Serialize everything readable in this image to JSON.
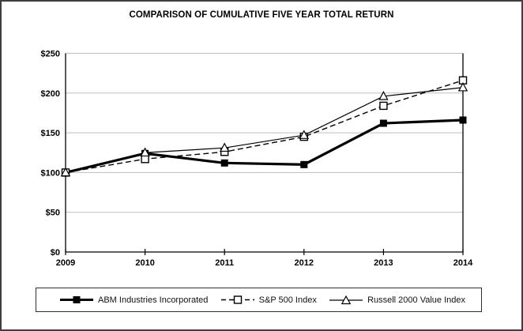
{
  "chart_data": {
    "type": "line",
    "title": "COMPARISON OF CUMULATIVE FIVE YEAR TOTAL RETURN",
    "x": [
      2009,
      2010,
      2011,
      2012,
      2013,
      2014
    ],
    "xtick_labels": [
      "2009",
      "2010",
      "2011",
      "2012",
      "2013",
      "2014"
    ],
    "series": [
      {
        "name": "ABM Industries Incorporated",
        "values": [
          100,
          124,
          112,
          110,
          162,
          166
        ],
        "line_style": "thick-solid",
        "marker": "filled-square"
      },
      {
        "name": "S&P 500 Index",
        "values": [
          100,
          117,
          126,
          145,
          184,
          216
        ],
        "line_style": "dashed",
        "marker": "open-square"
      },
      {
        "name": "Russell 2000 Value Index",
        "values": [
          100,
          125,
          131,
          147,
          196,
          207
        ],
        "line_style": "thin-solid",
        "marker": "open-triangle"
      }
    ],
    "ylim": [
      0,
      250
    ],
    "yticks": [
      0,
      50,
      100,
      150,
      200,
      250
    ],
    "ytick_labels": [
      "$0",
      "$50",
      "$100",
      "$150",
      "$200",
      "$250"
    ],
    "grid": true,
    "legend_position": "bottom",
    "colors": {
      "line": "#000000",
      "grid": "#bdbdbd",
      "background": "#ffffff",
      "frame_border": "#3f3f3f",
      "text": "#000000"
    }
  }
}
